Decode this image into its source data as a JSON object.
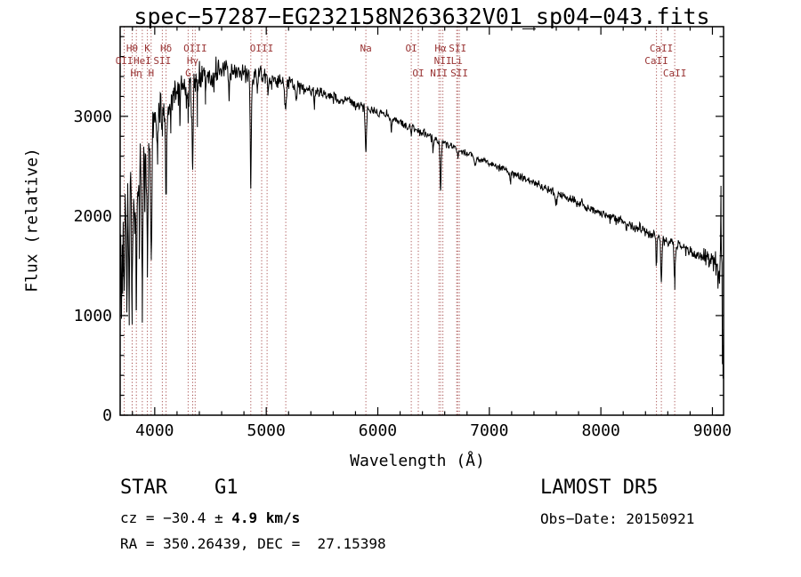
{
  "title": "spec−57287−EG232158N263632V01_sp04−043.fits",
  "footer": {
    "left": {
      "class_line": "STAR    G1",
      "cz_prefix": "cz = −30.4 ± ",
      "cz_bold": "4.9 km/s",
      "radec": "RA = 350.26439, DEC =  27.15398"
    },
    "right": {
      "survey": "LAMOST DR5",
      "obs_date": "Obs−Date: 20150921"
    }
  },
  "chart_data": {
    "type": "line",
    "title": "spec−57287−EG232158N263632V01_sp04−043.fits",
    "xlabel": "Wavelength (Å)",
    "ylabel": "Flux (relative)",
    "xlim": [
      3690,
      9100
    ],
    "ylim": [
      0,
      3900
    ],
    "x_ticks": [
      4000,
      5000,
      6000,
      7000,
      8000,
      9000
    ],
    "y_ticks": [
      0,
      1000,
      2000,
      3000
    ],
    "grid": false,
    "legend": "none",
    "line_color": "#000000",
    "marked_line_color": "#993333",
    "marked_lines": [
      {
        "label": "Hθ",
        "wavelength": 3798,
        "row": 1
      },
      {
        "label": "K",
        "wavelength": 3934,
        "row": 1
      },
      {
        "label": "Hδ",
        "wavelength": 4102,
        "row": 1
      },
      {
        "label": "OII",
        "wavelength": 3727,
        "row": 2
      },
      {
        "label": "HeI",
        "wavelength": 3889,
        "row": 2
      },
      {
        "label": "SII",
        "wavelength": 4068,
        "row": 2
      },
      {
        "label": "Hη",
        "wavelength": 3835,
        "row": 3
      },
      {
        "label": "H",
        "wavelength": 3968,
        "row": 3
      },
      {
        "label": "OIII",
        "wavelength": 4363,
        "row": 1
      },
      {
        "label": "Hγ",
        "wavelength": 4340,
        "row": 2
      },
      {
        "label": "G",
        "wavelength": 4300,
        "row": 3
      },
      {
        "label": "",
        "wavelength": 4861,
        "row": 0
      },
      {
        "label": "OIII",
        "wavelength": 4959,
        "row": 1
      },
      {
        "label": "",
        "wavelength": 5007,
        "row": 0
      },
      {
        "label": "",
        "wavelength": 5175,
        "row": 0
      },
      {
        "label": "Na",
        "wavelength": 5893,
        "row": 1
      },
      {
        "label": "OI",
        "wavelength": 6300,
        "row": 1
      },
      {
        "label": "OI",
        "wavelength": 6363,
        "row": 3
      },
      {
        "label": "Hα",
        "wavelength": 6563,
        "row": 1
      },
      {
        "label": "NII",
        "wavelength": 6548,
        "row": 3
      },
      {
        "label": "NII",
        "wavelength": 6583,
        "row": 2
      },
      {
        "label": "SII",
        "wavelength": 6716,
        "row": 1
      },
      {
        "label": "Li",
        "wavelength": 6708,
        "row": 2
      },
      {
        "label": "SII",
        "wavelength": 6731,
        "row": 3
      },
      {
        "label": "CaII",
        "wavelength": 8542,
        "row": 1
      },
      {
        "label": "CaII",
        "wavelength": 8498,
        "row": 2
      },
      {
        "label": "CaII",
        "wavelength": 8662,
        "row": 3
      }
    ],
    "spectrum_model": {
      "wl_start": 3690,
      "wl_end": 9100,
      "sample_step": 4.5,
      "noise_seed": 20150921,
      "continuum_knots": [
        [
          3690,
          1950
        ],
        [
          3720,
          2060
        ],
        [
          3760,
          2160
        ],
        [
          3800,
          2260
        ],
        [
          3850,
          2420
        ],
        [
          3900,
          2620
        ],
        [
          3950,
          2780
        ],
        [
          4000,
          2960
        ],
        [
          4050,
          3040
        ],
        [
          4100,
          3120
        ],
        [
          4200,
          3260
        ],
        [
          4300,
          3340
        ],
        [
          4400,
          3400
        ],
        [
          4500,
          3430
        ],
        [
          4600,
          3450
        ],
        [
          4700,
          3460
        ],
        [
          4800,
          3445
        ],
        [
          4900,
          3420
        ],
        [
          5000,
          3390
        ],
        [
          5100,
          3360
        ],
        [
          5200,
          3330
        ],
        [
          5300,
          3295
        ],
        [
          5400,
          3260
        ],
        [
          5500,
          3225
        ],
        [
          5600,
          3190
        ],
        [
          5700,
          3160
        ],
        [
          5800,
          3130
        ],
        [
          5900,
          3090
        ],
        [
          6000,
          3040
        ],
        [
          6100,
          2995
        ],
        [
          6200,
          2945
        ],
        [
          6300,
          2895
        ],
        [
          6400,
          2845
        ],
        [
          6500,
          2785
        ],
        [
          6600,
          2725
        ],
        [
          6700,
          2680
        ],
        [
          6800,
          2630
        ],
        [
          6900,
          2580
        ],
        [
          7000,
          2530
        ],
        [
          7200,
          2430
        ],
        [
          7400,
          2330
        ],
        [
          7600,
          2230
        ],
        [
          7800,
          2130
        ],
        [
          8000,
          2030
        ],
        [
          8200,
          1935
        ],
        [
          8400,
          1845
        ],
        [
          8600,
          1745
        ],
        [
          8800,
          1645
        ],
        [
          9000,
          1535
        ],
        [
          9060,
          1500
        ],
        [
          9100,
          1480
        ]
      ],
      "absorption_features": [
        [
          3702,
          3,
          800
        ],
        [
          3714,
          3,
          620
        ],
        [
          3727,
          4,
          620
        ],
        [
          3750,
          4,
          950
        ],
        [
          3771,
          4,
          1020
        ],
        [
          3798,
          5,
          1150
        ],
        [
          3820,
          3,
          560
        ],
        [
          3835,
          5,
          1300
        ],
        [
          3862,
          3,
          520
        ],
        [
          3889,
          5,
          1350
        ],
        [
          3912,
          3,
          430
        ],
        [
          3934,
          5,
          1260
        ],
        [
          3969,
          5,
          1350
        ],
        [
          4026,
          3,
          340
        ],
        [
          4068,
          3,
          310
        ],
        [
          4102,
          5,
          960
        ],
        [
          4144,
          3,
          270
        ],
        [
          4227,
          3,
          270
        ],
        [
          4300,
          7,
          300
        ],
        [
          4326,
          3,
          260
        ],
        [
          4340,
          5,
          950
        ],
        [
          4383,
          3,
          330
        ],
        [
          4455,
          3,
          230
        ],
        [
          4531,
          3,
          210
        ],
        [
          4668,
          3,
          230
        ],
        [
          4861,
          5,
          1150
        ],
        [
          4920,
          3,
          190
        ],
        [
          5015,
          3,
          160
        ],
        [
          5172,
          7,
          270
        ],
        [
          5270,
          5,
          160
        ],
        [
          5430,
          4,
          120
        ],
        [
          5893,
          6,
          440
        ],
        [
          6122,
          4,
          110
        ],
        [
          6300,
          3,
          80
        ],
        [
          6494,
          4,
          130
        ],
        [
          6563,
          5,
          490
        ],
        [
          6717,
          3,
          90
        ],
        [
          6870,
          7,
          95
        ],
        [
          7190,
          6,
          70
        ],
        [
          7600,
          9,
          115
        ],
        [
          8230,
          4,
          80
        ],
        [
          8498,
          4,
          290
        ],
        [
          8542,
          5,
          410
        ],
        [
          8662,
          5,
          390
        ],
        [
          9078,
          3,
          -300
        ],
        [
          9095,
          5,
          1090
        ]
      ],
      "noise_profile": [
        [
          3690,
          235
        ],
        [
          3760,
          195
        ],
        [
          3850,
          165
        ],
        [
          3950,
          140
        ],
        [
          4100,
          105
        ],
        [
          4300,
          85
        ],
        [
          4500,
          65
        ],
        [
          4800,
          55
        ],
        [
          5000,
          42
        ],
        [
          5400,
          33
        ],
        [
          5800,
          28
        ],
        [
          6200,
          25
        ],
        [
          6800,
          21
        ],
        [
          7400,
          20
        ],
        [
          8000,
          24
        ],
        [
          8600,
          30
        ],
        [
          8900,
          38
        ],
        [
          9010,
          50
        ],
        [
          9045,
          130
        ],
        [
          9075,
          210
        ],
        [
          9100,
          240
        ]
      ]
    }
  }
}
